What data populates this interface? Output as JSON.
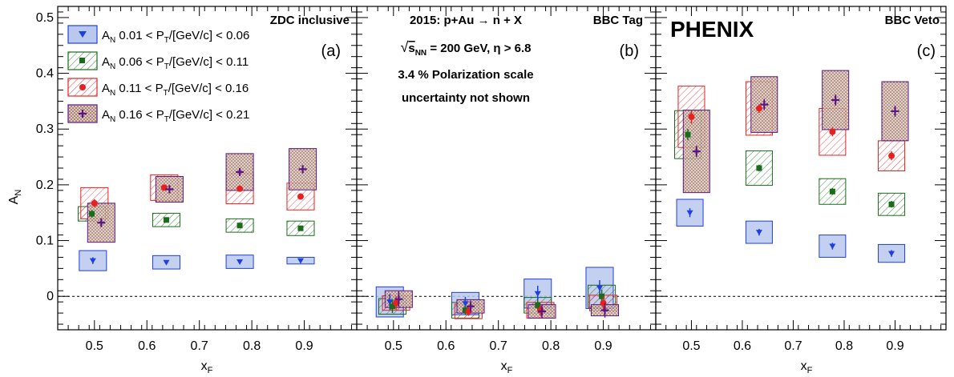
{
  "chart_data": {
    "type": "scatter",
    "y_axis": {
      "label_main": "A",
      "label_sub": "N",
      "range": [
        -0.06,
        0.52
      ],
      "ticks": [
        -0.0,
        0.1,
        0.2,
        0.3,
        0.4,
        0.5
      ],
      "tick_labels": [
        "0",
        "0.1",
        "0.2",
        "0.3",
        "0.4",
        "0.5"
      ]
    },
    "x_axis": {
      "label_main": "x",
      "label_sub": "F",
      "range": [
        0.43,
        1.0
      ],
      "ticks": [
        0.5,
        0.6,
        0.7,
        0.8,
        0.9
      ],
      "tick_labels": [
        "0.5",
        "0.6",
        "0.7",
        "0.8",
        "0.9"
      ]
    },
    "reference_line_y": 0,
    "experiment_label": "PHENIX",
    "annotations": {
      "line1": "2015: p+Au → n + X",
      "line2_pre": "√",
      "line2_s": "s",
      "line2_sub": "NN",
      "line2_post": " = 200 GeV, η > 6.8",
      "line3": "3.4 % Polarization scale",
      "line4": "uncertainty not shown"
    },
    "legend": [
      {
        "prefix": "A",
        "prefix_sub": "N",
        "range_lo": " 0.01 < P",
        "range_sub": "T",
        "range_hi": "/[GeV/c] < 0.06"
      },
      {
        "prefix": "A",
        "prefix_sub": "N",
        "range_lo": " 0.06 < P",
        "range_sub": "T",
        "range_hi": "/[GeV/c] < 0.11"
      },
      {
        "prefix": "A",
        "prefix_sub": "N",
        "range_lo": " 0.11 < P",
        "range_sub": "T",
        "range_hi": "/[GeV/c] < 0.16"
      },
      {
        "prefix": "A",
        "prefix_sub": "N",
        "range_lo": " 0.16 < P",
        "range_sub": "T",
        "range_hi": "/[GeV/c] < 0.21"
      }
    ],
    "series_style": [
      {
        "color": "#1f3fe0",
        "fill": "#b9c8ec",
        "marker": "triangle-down"
      },
      {
        "color": "#1a6b1a",
        "fill": "none",
        "hatch": "diag",
        "marker": "square"
      },
      {
        "color": "#e82020",
        "fill": "none",
        "hatch": "diag",
        "marker": "circle"
      },
      {
        "color": "#5c1480",
        "fill": "#d9c2b8",
        "hatch": "dots",
        "marker": "cross"
      }
    ],
    "panels": [
      {
        "title": "ZDC inclusive",
        "label": "(a)",
        "series": [
          {
            "points": [
              {
                "x": 0.497,
                "y": 0.064,
                "err": 0.006,
                "sys": 0.018,
                "bw": 0.052
              },
              {
                "x": 0.637,
                "y": 0.061,
                "err": 0.003,
                "sys": 0.012,
                "bw": 0.052
              },
              {
                "x": 0.777,
                "y": 0.062,
                "err": 0.003,
                "sys": 0.012,
                "bw": 0.052
              },
              {
                "x": 0.893,
                "y": 0.064,
                "err": 0.002,
                "sys": 0.006,
                "bw": 0.052
              }
            ]
          },
          {
            "points": [
              {
                "x": 0.495,
                "y": 0.148,
                "err": 0.007,
                "sys": 0.013,
                "bw": 0.052
              },
              {
                "x": 0.637,
                "y": 0.137,
                "err": 0.004,
                "sys": 0.012,
                "bw": 0.052
              },
              {
                "x": 0.777,
                "y": 0.127,
                "err": 0.004,
                "sys": 0.012,
                "bw": 0.052
              },
              {
                "x": 0.893,
                "y": 0.122,
                "err": 0.004,
                "sys": 0.013,
                "bw": 0.052
              }
            ]
          },
          {
            "points": [
              {
                "x": 0.5,
                "y": 0.167,
                "err": 0.007,
                "sys": 0.028,
                "bw": 0.052
              },
              {
                "x": 0.633,
                "y": 0.195,
                "err": 0.004,
                "sys": 0.023,
                "bw": 0.052
              },
              {
                "x": 0.777,
                "y": 0.193,
                "err": 0.004,
                "sys": 0.027,
                "bw": 0.052
              },
              {
                "x": 0.893,
                "y": 0.179,
                "err": 0.004,
                "sys": 0.024,
                "bw": 0.052
              }
            ]
          },
          {
            "points": [
              {
                "x": 0.513,
                "y": 0.132,
                "err": 0.008,
                "sys": 0.035,
                "bw": 0.052
              },
              {
                "x": 0.643,
                "y": 0.192,
                "err": 0.006,
                "sys": 0.023,
                "bw": 0.052
              },
              {
                "x": 0.777,
                "y": 0.223,
                "err": 0.006,
                "sys": 0.033,
                "bw": 0.052
              },
              {
                "x": 0.897,
                "y": 0.228,
                "err": 0.007,
                "sys": 0.037,
                "bw": 0.052
              }
            ]
          }
        ]
      },
      {
        "title": "BBC Tag",
        "label": "(b)",
        "series": [
          {
            "points": [
              {
                "x": 0.493,
                "y": -0.01,
                "err": 0.014,
                "sys": 0.027,
                "bw": 0.052
              },
              {
                "x": 0.637,
                "y": -0.013,
                "err": 0.012,
                "sys": 0.02,
                "bw": 0.052
              },
              {
                "x": 0.775,
                "y": 0.005,
                "err": 0.014,
                "sys": 0.026,
                "bw": 0.052
              },
              {
                "x": 0.893,
                "y": 0.015,
                "err": 0.014,
                "sys": 0.037,
                "bw": 0.052
              }
            ]
          },
          {
            "points": [
              {
                "x": 0.498,
                "y": -0.018,
                "err": 0.012,
                "sys": 0.014,
                "bw": 0.052
              },
              {
                "x": 0.637,
                "y": -0.025,
                "err": 0.008,
                "sys": 0.014,
                "bw": 0.052
              },
              {
                "x": 0.775,
                "y": -0.016,
                "err": 0.01,
                "sys": 0.014,
                "bw": 0.052
              },
              {
                "x": 0.897,
                "y": 0.0,
                "err": 0.012,
                "sys": 0.02,
                "bw": 0.052
              }
            ]
          },
          {
            "points": [
              {
                "x": 0.505,
                "y": -0.012,
                "err": 0.012,
                "sys": 0.013,
                "bw": 0.052
              },
              {
                "x": 0.643,
                "y": -0.027,
                "err": 0.008,
                "sys": 0.013,
                "bw": 0.052
              },
              {
                "x": 0.78,
                "y": -0.025,
                "err": 0.01,
                "sys": 0.014,
                "bw": 0.052
              },
              {
                "x": 0.9,
                "y": -0.012,
                "err": 0.012,
                "sys": 0.014,
                "bw": 0.052
              }
            ]
          },
          {
            "points": [
              {
                "x": 0.51,
                "y": -0.005,
                "err": 0.014,
                "sys": 0.015,
                "bw": 0.052
              },
              {
                "x": 0.647,
                "y": -0.018,
                "err": 0.01,
                "sys": 0.012,
                "bw": 0.052
              },
              {
                "x": 0.783,
                "y": -0.027,
                "err": 0.012,
                "sys": 0.012,
                "bw": 0.052
              },
              {
                "x": 0.903,
                "y": -0.025,
                "err": 0.013,
                "sys": 0.01,
                "bw": 0.052
              }
            ]
          }
        ]
      },
      {
        "title": "BBC Veto",
        "label": "(c)",
        "series": [
          {
            "points": [
              {
                "x": 0.497,
                "y": 0.15,
                "err": 0.008,
                "sys": 0.024,
                "bw": 0.052
              },
              {
                "x": 0.633,
                "y": 0.115,
                "err": 0.006,
                "sys": 0.02,
                "bw": 0.052
              },
              {
                "x": 0.777,
                "y": 0.09,
                "err": 0.006,
                "sys": 0.02,
                "bw": 0.052
              },
              {
                "x": 0.893,
                "y": 0.077,
                "err": 0.006,
                "sys": 0.016,
                "bw": 0.052
              }
            ]
          },
          {
            "points": [
              {
                "x": 0.493,
                "y": 0.29,
                "err": 0.01,
                "sys": 0.043,
                "bw": 0.052
              },
              {
                "x": 0.633,
                "y": 0.23,
                "err": 0.006,
                "sys": 0.031,
                "bw": 0.052
              },
              {
                "x": 0.777,
                "y": 0.188,
                "err": 0.006,
                "sys": 0.023,
                "bw": 0.052
              },
              {
                "x": 0.893,
                "y": 0.165,
                "err": 0.006,
                "sys": 0.02,
                "bw": 0.052
              }
            ]
          },
          {
            "points": [
              {
                "x": 0.5,
                "y": 0.322,
                "err": 0.012,
                "sys": 0.055,
                "bw": 0.052
              },
              {
                "x": 0.633,
                "y": 0.337,
                "err": 0.008,
                "sys": 0.048,
                "bw": 0.052
              },
              {
                "x": 0.777,
                "y": 0.295,
                "err": 0.008,
                "sys": 0.042,
                "bw": 0.052
              },
              {
                "x": 0.893,
                "y": 0.252,
                "err": 0.008,
                "sys": 0.027,
                "bw": 0.052
              }
            ]
          },
          {
            "points": [
              {
                "x": 0.51,
                "y": 0.26,
                "err": 0.01,
                "sys": 0.074,
                "bw": 0.052
              },
              {
                "x": 0.643,
                "y": 0.344,
                "err": 0.01,
                "sys": 0.05,
                "bw": 0.052
              },
              {
                "x": 0.783,
                "y": 0.352,
                "err": 0.01,
                "sys": 0.053,
                "bw": 0.052
              },
              {
                "x": 0.9,
                "y": 0.332,
                "err": 0.01,
                "sys": 0.053,
                "bw": 0.052
              }
            ]
          }
        ]
      }
    ]
  }
}
